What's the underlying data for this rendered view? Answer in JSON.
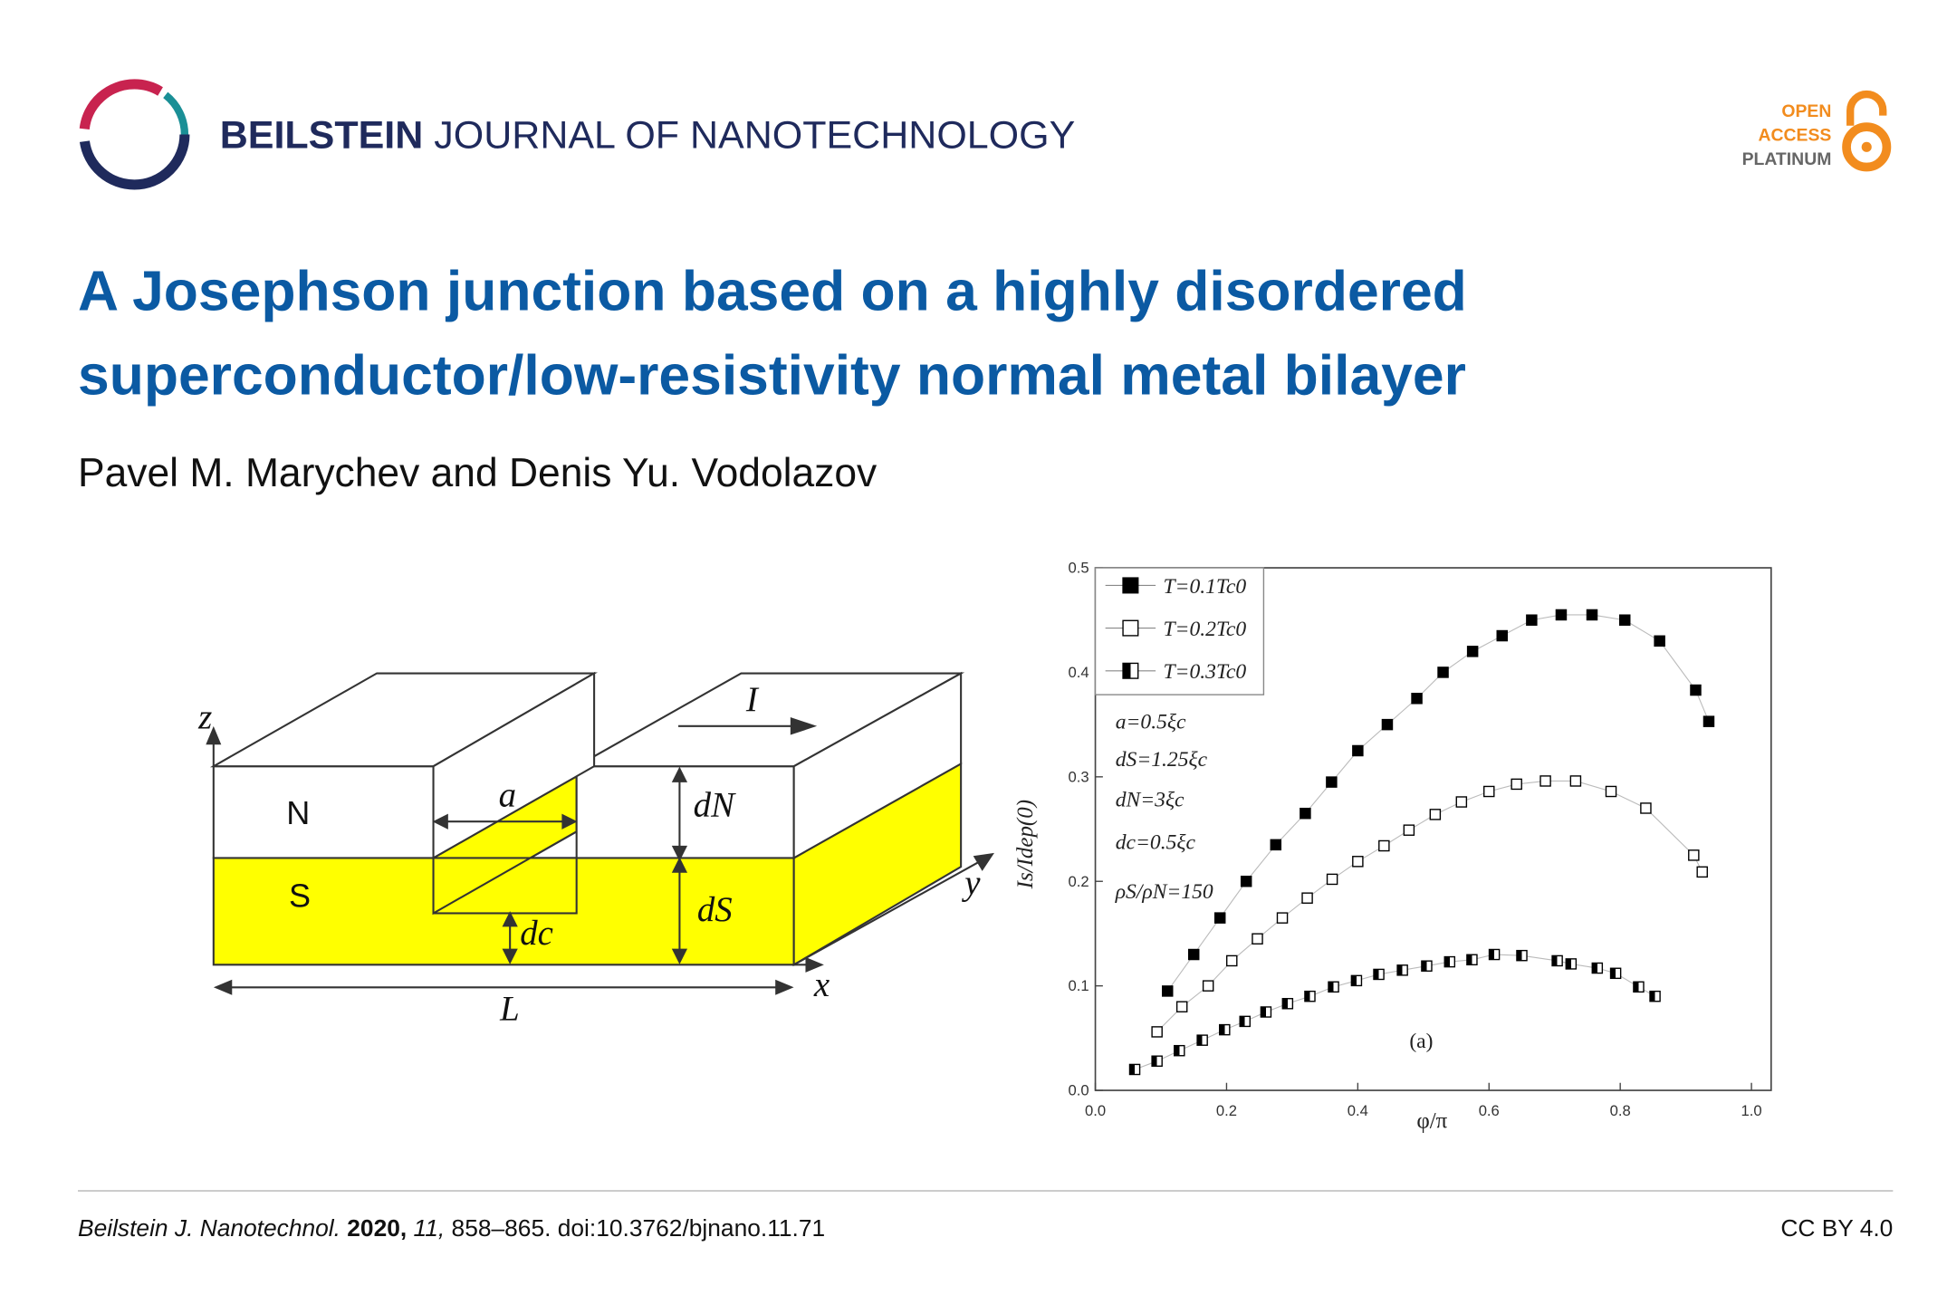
{
  "header": {
    "brand": "BEILSTEIN",
    "journal": "JOURNAL OF NANOTECHNOLOGY",
    "badge": [
      "OPEN",
      "ACCESS",
      "PLATINUM"
    ]
  },
  "title": [
    "A Josephson junction based on a highly disordered",
    "superconductor/low-resistivity normal metal bilayer"
  ],
  "authors": "Pavel M. Marychev and Denis Yu. Vodolazov",
  "diagram": {
    "z": "z",
    "y": "y",
    "x": "x",
    "N": "N",
    "S": "S",
    "a": "a",
    "dN": "dN",
    "dS": "dS",
    "dc": "dc",
    "L": "L",
    "I": "I"
  },
  "chart_data": {
    "type": "scatter",
    "xlabel": "φ/π",
    "ylabel": "Is/Idep(0)",
    "xlim": [
      0,
      1.03
    ],
    "ylim": [
      0,
      0.5
    ],
    "xticks": [
      {
        "value": 0,
        "label": "0.0"
      },
      {
        "value": 0.2,
        "label": "0.2"
      },
      {
        "value": 0.4,
        "label": "0.4"
      },
      {
        "value": 0.6,
        "label": "0.6"
      },
      {
        "value": 0.8,
        "label": "0.8"
      },
      {
        "value": 1,
        "label": "1.0"
      }
    ],
    "yticks": [
      {
        "value": 0,
        "label": "0.0"
      },
      0.1,
      0.2,
      0.3,
      0.4,
      0.5
    ],
    "annotations": [
      "a=0.5ξc",
      "dS=1.25ξc",
      "dN=3ξc",
      "dc=0.5ξc",
      "ρS/ρN=150",
      "(a)"
    ],
    "series": [
      {
        "name": "T=0.1Tc0",
        "color": "#000000",
        "x": [
          0.11,
          0.15,
          0.19,
          0.23,
          0.275,
          0.32,
          0.36,
          0.4,
          0.445,
          0.49,
          0.53,
          0.575,
          0.62,
          0.665,
          0.71,
          0.757,
          0.807,
          0.86,
          0.915,
          0.935
        ],
        "values": [
          0.095,
          0.13,
          0.165,
          0.2,
          0.235,
          0.265,
          0.295,
          0.325,
          0.35,
          0.375,
          0.4,
          0.42,
          0.435,
          0.45,
          0.455,
          0.455,
          0.45,
          0.43,
          0.383,
          0.353
        ]
      },
      {
        "name": "T=0.2Tc0",
        "color": "#ffffff",
        "x": [
          0.094,
          0.132,
          0.172,
          0.208,
          0.247,
          0.285,
          0.323,
          0.361,
          0.4,
          0.44,
          0.478,
          0.518,
          0.558,
          0.6,
          0.642,
          0.686,
          0.732,
          0.786,
          0.839,
          0.912,
          0.925
        ],
        "values": [
          0.056,
          0.08,
          0.1,
          0.124,
          0.145,
          0.165,
          0.184,
          0.202,
          0.219,
          0.234,
          0.249,
          0.264,
          0.276,
          0.286,
          0.293,
          0.296,
          0.296,
          0.286,
          0.27,
          0.225,
          0.209
        ]
      },
      {
        "name": "T=0.3Tc0",
        "color": "half",
        "x": [
          0.06,
          0.094,
          0.128,
          0.163,
          0.197,
          0.228,
          0.26,
          0.293,
          0.327,
          0.363,
          0.398,
          0.432,
          0.468,
          0.505,
          0.54,
          0.574,
          0.608,
          0.65,
          0.704,
          0.725,
          0.765,
          0.793,
          0.828,
          0.853
        ],
        "values": [
          0.02,
          0.028,
          0.038,
          0.048,
          0.058,
          0.066,
          0.075,
          0.083,
          0.09,
          0.099,
          0.105,
          0.111,
          0.115,
          0.119,
          0.123,
          0.125,
          0.13,
          0.129,
          0.124,
          0.121,
          0.117,
          0.112,
          0.099,
          0.09
        ]
      }
    ]
  },
  "footer": {
    "journal": "Beilstein J. Nanotechnol.",
    "year": "2020,",
    "volume": "11,",
    "pages": "858–865. doi:10.3762/bjnano.11.71",
    "license": "CC BY 4.0"
  }
}
